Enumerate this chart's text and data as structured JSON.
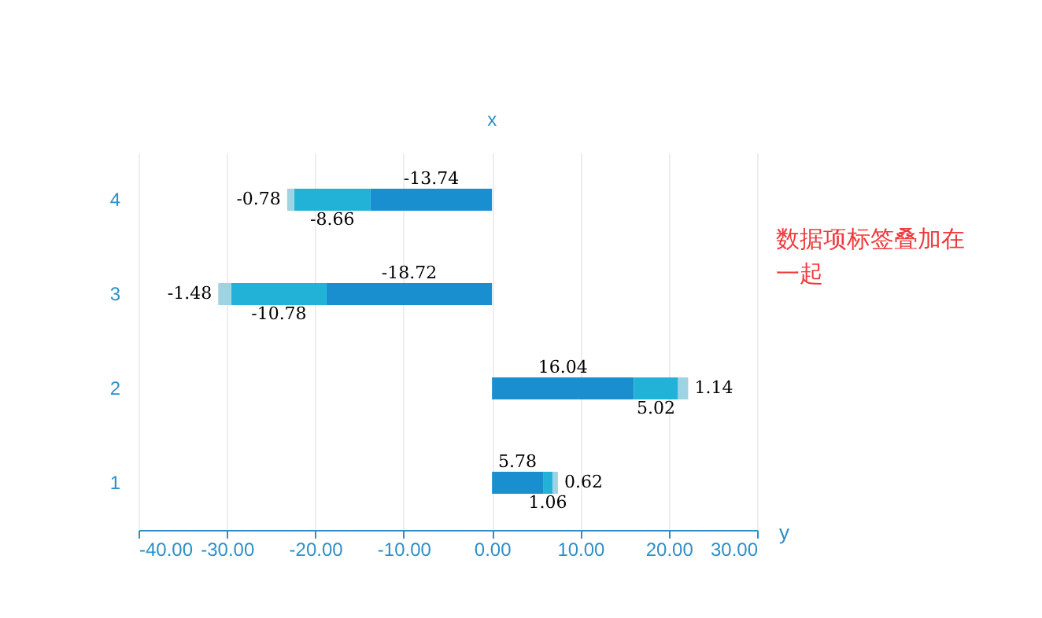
{
  "chart_data": {
    "type": "bar",
    "orientation": "horizontal",
    "stacked": true,
    "data_labels": true,
    "xlabel": "y",
    "ylabel": "x",
    "categories": [
      "4",
      "3",
      "2",
      "1"
    ],
    "series": [
      {
        "color": "#1a8fd0",
        "values": [
          -13.74,
          -18.72,
          16.04,
          5.78
        ]
      },
      {
        "color": "#22b2d8",
        "values": [
          -8.66,
          -10.78,
          5.02,
          1.06
        ]
      },
      {
        "color": "#9fd3e2",
        "values": [
          -0.78,
          -1.48,
          1.14,
          0.62
        ]
      }
    ],
    "xlim": [
      -40,
      30
    ],
    "xticks": [
      {
        "value": -40,
        "label": "-40.00"
      },
      {
        "value": -30,
        "label": "-30.00"
      },
      {
        "value": -20,
        "label": "-20.00"
      },
      {
        "value": -10,
        "label": "-10.00"
      },
      {
        "value": 0,
        "label": "0.00"
      },
      {
        "value": 10,
        "label": "10.00"
      },
      {
        "value": 20,
        "label": "20.00"
      },
      {
        "value": 30,
        "label": "30.00"
      }
    ],
    "grid": "x",
    "annotations": [
      "数据项标签叠加在一起"
    ]
  }
}
